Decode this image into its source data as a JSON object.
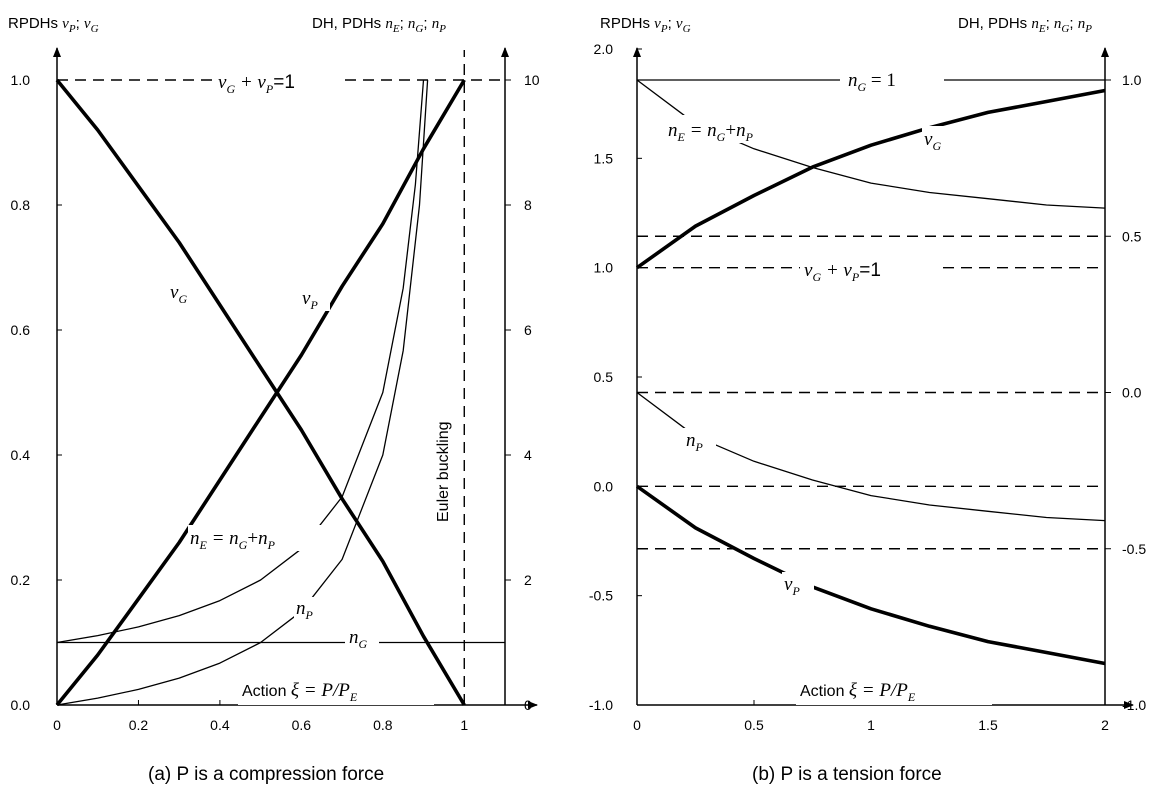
{
  "chart_data": [
    {
      "type": "line",
      "caption": "(a) P is a compression force",
      "left_axis_title": "RPDHs νP; νG",
      "right_axis_title": "DH, PDHs nE; nG; nP",
      "x_ticks": [
        "0",
        "0.2",
        "0.4",
        "0.6",
        "0.8",
        "1"
      ],
      "left_ticks": [
        "0.0",
        "0.2",
        "0.4",
        "0.6",
        "0.8",
        "1.0"
      ],
      "right_ticks": [
        "0",
        "2",
        "4",
        "6",
        "8",
        "10"
      ],
      "xlim": [
        0,
        1.1
      ],
      "left_ylim": [
        0,
        1.0
      ],
      "right_ylim": [
        0,
        10
      ],
      "x_axis_label": "Action ξ = P/PE",
      "vertical_note": "Euler buckling",
      "annotations": [
        "νG + νP=1",
        "νG",
        "νP",
        "nE = nG+nP",
        "nP",
        "nG"
      ],
      "series": [
        {
          "name": "νG",
          "axis": "left",
          "x": [
            0,
            0.1,
            0.2,
            0.3,
            0.4,
            0.5,
            0.6,
            0.7,
            0.8,
            0.9,
            1.0
          ],
          "values": [
            1.0,
            0.92,
            0.83,
            0.74,
            0.64,
            0.54,
            0.44,
            0.33,
            0.23,
            0.11,
            0.0
          ]
        },
        {
          "name": "νP",
          "axis": "left",
          "x": [
            0,
            0.1,
            0.2,
            0.3,
            0.4,
            0.5,
            0.6,
            0.7,
            0.8,
            0.9,
            1.0
          ],
          "values": [
            0.0,
            0.08,
            0.17,
            0.26,
            0.36,
            0.46,
            0.56,
            0.67,
            0.77,
            0.89,
            1.0
          ]
        },
        {
          "name": "nE = nG+nP",
          "axis": "right",
          "x": [
            0,
            0.1,
            0.2,
            0.3,
            0.4,
            0.5,
            0.6,
            0.7,
            0.8,
            0.85,
            0.88,
            0.9
          ],
          "values": [
            1.0,
            1.11,
            1.25,
            1.43,
            1.67,
            2.0,
            2.5,
            3.33,
            5.0,
            6.67,
            8.33,
            10.0
          ]
        },
        {
          "name": "nP",
          "axis": "right",
          "x": [
            0,
            0.1,
            0.2,
            0.3,
            0.4,
            0.5,
            0.6,
            0.7,
            0.8,
            0.85,
            0.89,
            0.91
          ],
          "values": [
            0.0,
            0.11,
            0.25,
            0.43,
            0.67,
            1.0,
            1.5,
            2.33,
            4.0,
            5.67,
            8.0,
            10.0
          ]
        },
        {
          "name": "nG",
          "axis": "right",
          "x": [
            0,
            1.1
          ],
          "values": [
            1.0,
            1.0
          ]
        }
      ],
      "reference_lines": [
        {
          "label": "νG + νP=1",
          "axis": "left",
          "y": 1.0
        },
        {
          "label": "Euler buckling",
          "x": 1.0
        }
      ]
    },
    {
      "type": "line",
      "caption": "(b) P is a tension force",
      "left_axis_title": "RPDHs νP; νG",
      "right_axis_title": "DH, PDHs nE; nG; nP",
      "x_ticks": [
        "0",
        "0.5",
        "1",
        "1.5",
        "2"
      ],
      "left_ticks": [
        "-1.0",
        "-0.5",
        "0.0",
        "0.5",
        "1.0",
        "1.5",
        "2.0"
      ],
      "right_ticks": [
        "-1.0",
        "-0.5",
        "0.0",
        "0.5",
        "1.0"
      ],
      "xlim": [
        0,
        2
      ],
      "left_ylim": [
        -1.0,
        2.0
      ],
      "right_ylim": [
        -1.0,
        1.0
      ],
      "x_axis_label": "Action ξ = P/PE",
      "annotations": [
        "nG = 1",
        "nE = nG+nP",
        "νG",
        "νG + νP=1",
        "nP",
        "νP"
      ],
      "series": [
        {
          "name": "νG",
          "axis": "left",
          "x": [
            0,
            0.25,
            0.5,
            0.75,
            1.0,
            1.25,
            1.5,
            1.75,
            2.0
          ],
          "values": [
            1.0,
            1.19,
            1.33,
            1.46,
            1.56,
            1.64,
            1.71,
            1.76,
            1.81
          ]
        },
        {
          "name": "νP",
          "axis": "left",
          "x": [
            0,
            0.25,
            0.5,
            0.75,
            1.0,
            1.25,
            1.5,
            1.75,
            2.0
          ],
          "values": [
            0.0,
            -0.19,
            -0.33,
            -0.46,
            -0.56,
            -0.64,
            -0.71,
            -0.76,
            -0.81
          ]
        },
        {
          "name": "nE = nG+nP",
          "axis": "right",
          "x": [
            0,
            0.25,
            0.5,
            0.75,
            1.0,
            1.25,
            1.5,
            1.75,
            2.0
          ],
          "values": [
            1.0,
            0.86,
            0.78,
            0.72,
            0.67,
            0.64,
            0.62,
            0.6,
            0.59
          ]
        },
        {
          "name": "nP",
          "axis": "right",
          "x": [
            0,
            0.25,
            0.5,
            0.75,
            1.0,
            1.25,
            1.5,
            1.75,
            2.0
          ],
          "values": [
            0.0,
            -0.14,
            -0.22,
            -0.28,
            -0.33,
            -0.36,
            -0.38,
            -0.4,
            -0.41
          ]
        },
        {
          "name": "nG = 1",
          "axis": "right",
          "x": [
            0,
            2.0
          ],
          "values": [
            1.0,
            1.0
          ]
        }
      ],
      "reference_lines": [
        {
          "axis": "right",
          "y": 0.5
        },
        {
          "label": "νG + νP=1",
          "axis": "left",
          "y": 1.0
        },
        {
          "axis": "right",
          "y": 0.0
        },
        {
          "axis": "left",
          "y": 0.0
        },
        {
          "axis": "right",
          "y": -0.5
        }
      ]
    }
  ]
}
